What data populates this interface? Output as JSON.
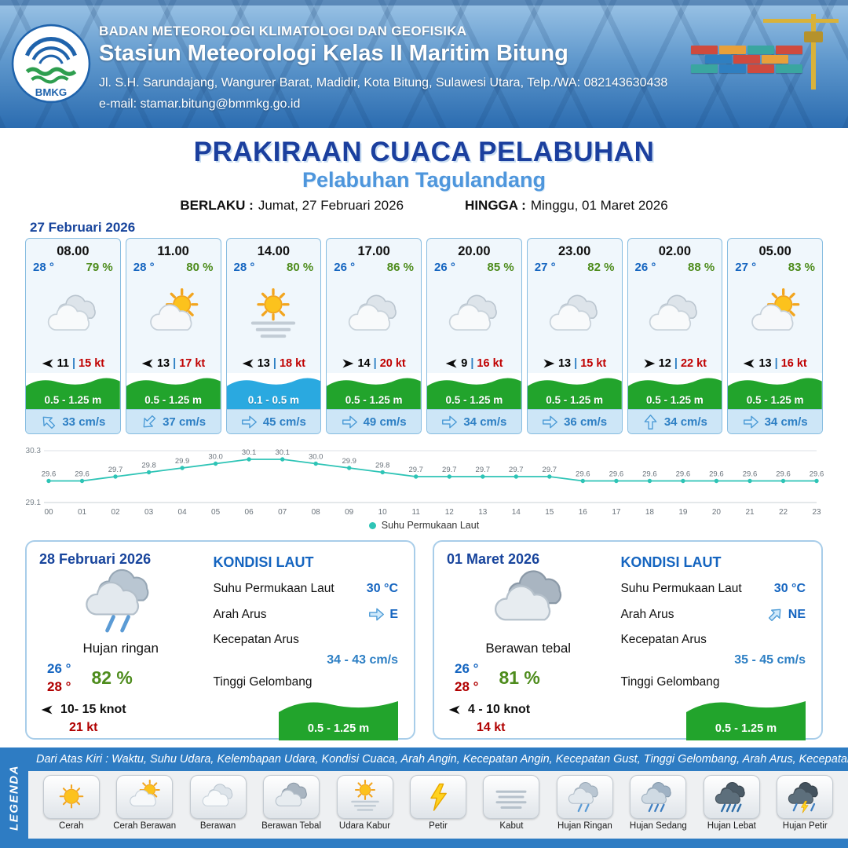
{
  "header": {
    "logo_text": "BMKG",
    "agency": "BADAN METEOROLOGI KLIMATOLOGI DAN GEOFISIKA",
    "station": "Stasiun Meteorologi Kelas II Maritim Bitung",
    "address": "Jl. S.H. Sarundajang, Wangurer Barat, Madidir, Kota Bitung, Sulawesi Utara, Telp./WA: 082143630438",
    "email": "e-mail: stamar.bitung@bmmkg.go.id"
  },
  "title": {
    "main": "PRAKIRAAN CUACA PELABUHAN",
    "port": "Pelabuhan Tagulandang",
    "valid_from_label": "BERLAKU :",
    "valid_from": "Jumat, 27 Februari 2026",
    "valid_to_label": "HINGGA :",
    "valid_to": "Minggu, 01 Maret 2026"
  },
  "forecast": {
    "date": "27 Februari 2026",
    "sep": "|",
    "cards": [
      {
        "time": "08.00",
        "temp": "28 °",
        "humidity": "79 %",
        "icon": "berawan",
        "wind_dir": "W",
        "wind_speed": "11",
        "wind_gust": "15 kt",
        "wave": "0.5 - 1.25 m",
        "wave_color": "green",
        "current_dir": "NW",
        "current_speed": "33 cm/s"
      },
      {
        "time": "11.00",
        "temp": "28 °",
        "humidity": "80 %",
        "icon": "cerah-berawan",
        "wind_dir": "W",
        "wind_speed": "13",
        "wind_gust": "17 kt",
        "wave": "0.5 - 1.25 m",
        "wave_color": "green",
        "current_dir": "SW",
        "current_speed": "37 cm/s"
      },
      {
        "time": "14.00",
        "temp": "28 °",
        "humidity": "80 %",
        "icon": "udara-kabur",
        "wind_dir": "W",
        "wind_speed": "13",
        "wind_gust": "18 kt",
        "wave": "0.1 - 0.5 m",
        "wave_color": "blue",
        "current_dir": "E",
        "current_speed": "45 cm/s"
      },
      {
        "time": "17.00",
        "temp": "26 °",
        "humidity": "86 %",
        "icon": "berawan",
        "wind_dir": "E",
        "wind_speed": "14",
        "wind_gust": "20 kt",
        "wave": "0.5 - 1.25 m",
        "wave_color": "green",
        "current_dir": "E",
        "current_speed": "49 cm/s"
      },
      {
        "time": "20.00",
        "temp": "26 °",
        "humidity": "85 %",
        "icon": "berawan",
        "wind_dir": "W",
        "wind_speed": "9",
        "wind_gust": "16 kt",
        "wave": "0.5 - 1.25 m",
        "wave_color": "green",
        "current_dir": "E",
        "current_speed": "34 cm/s"
      },
      {
        "time": "23.00",
        "temp": "27 °",
        "humidity": "82 %",
        "icon": "berawan",
        "wind_dir": "E",
        "wind_speed": "13",
        "wind_gust": "15 kt",
        "wave": "0.5 - 1.25 m",
        "wave_color": "green",
        "current_dir": "E",
        "current_speed": "36 cm/s"
      },
      {
        "time": "02.00",
        "temp": "26 °",
        "humidity": "88 %",
        "icon": "berawan",
        "wind_dir": "E",
        "wind_speed": "12",
        "wind_gust": "22 kt",
        "wave": "0.5 - 1.25 m",
        "wave_color": "green",
        "current_dir": "N",
        "current_speed": "34 cm/s"
      },
      {
        "time": "05.00",
        "temp": "27 °",
        "humidity": "83 %",
        "icon": "cerah-berawan",
        "wind_dir": "W",
        "wind_speed": "13",
        "wind_gust": "16 kt",
        "wave": "0.5 - 1.25 m",
        "wave_color": "green",
        "current_dir": "E",
        "current_speed": "34 cm/s"
      }
    ]
  },
  "chart_data": {
    "type": "line",
    "title": "",
    "x": [
      "00",
      "01",
      "02",
      "03",
      "04",
      "05",
      "06",
      "07",
      "08",
      "09",
      "10",
      "11",
      "12",
      "13",
      "14",
      "15",
      "16",
      "17",
      "18",
      "19",
      "20",
      "21",
      "22",
      "23"
    ],
    "series": [
      {
        "name": "Suhu Permukaan Laut",
        "values": [
          29.6,
          29.6,
          29.7,
          29.8,
          29.9,
          30.0,
          30.1,
          30.1,
          30.0,
          29.9,
          29.8,
          29.7,
          29.7,
          29.7,
          29.7,
          29.7,
          29.6,
          29.6,
          29.6,
          29.6,
          29.6,
          29.6,
          29.6,
          29.6
        ]
      }
    ],
    "ylim": [
      29.1,
      30.3
    ],
    "line_color": "#2ec4b6",
    "legend_position": "bottom",
    "grid": false
  },
  "summaries": [
    {
      "date": "28 Februari 2026",
      "icon": "hujan-ringan",
      "condition": "Hujan ringan",
      "temp_min": "26 °",
      "temp_max": "28 °",
      "humidity": "82 %",
      "wind_dir": "W",
      "wind_range": "10- 15 knot",
      "gust": "21 kt",
      "sea_title": "KONDISI LAUT",
      "sst_label": "Suhu Permukaan Laut",
      "sst": "30 °C",
      "current_dir_label": "Arah Arus",
      "current_dir": "E",
      "current_speed_label": "Kecepatan Arus",
      "current_speed": "34 - 43 cm/s",
      "wave_label": "Tinggi Gelombang",
      "wave": "0.5 - 1.25 m"
    },
    {
      "date": "01 Maret 2026",
      "icon": "berawan-tebal",
      "condition": "Berawan tebal",
      "temp_min": "26 °",
      "temp_max": "28 °",
      "humidity": "81 %",
      "wind_dir": "W",
      "wind_range": "4  - 10 knot",
      "gust": "14 kt",
      "sea_title": "KONDISI LAUT",
      "sst_label": "Suhu Permukaan Laut",
      "sst": "30 °C",
      "current_dir_label": "Arah Arus",
      "current_dir": "NE",
      "current_speed_label": "Kecepatan Arus",
      "current_speed": "35 - 45 cm/s",
      "wave_label": "Tinggi Gelombang",
      "wave": "0.5 - 1.25 m"
    }
  ],
  "legend": {
    "note": "Dari Atas Kiri : Waktu, Suhu Udara, Kelembapan Udara, Kondisi Cuaca, Arah Angin, Kecepatan Angin, Kecepatan Gust, Tinggi Gelombang, Arah Arus, Kecepatan Arus",
    "title": "LEGENDA",
    "items": [
      {
        "icon": "cerah",
        "label": "Cerah"
      },
      {
        "icon": "cerah-berawan",
        "label": "Cerah Berawan"
      },
      {
        "icon": "berawan",
        "label": "Berawan"
      },
      {
        "icon": "berawan-tebal",
        "label": "Berawan Tebal"
      },
      {
        "icon": "udara-kabur",
        "label": "Udara Kabur"
      },
      {
        "icon": "petir",
        "label": "Petir"
      },
      {
        "icon": "kabut",
        "label": "Kabut"
      },
      {
        "icon": "hujan-ringan",
        "label": "Hujan Ringan"
      },
      {
        "icon": "hujan-sedang",
        "label": "Hujan Sedang"
      },
      {
        "icon": "hujan-lebat",
        "label": "Hujan Lebat"
      },
      {
        "icon": "hujan-petir",
        "label": "Hujan Petir"
      }
    ]
  },
  "colors": {
    "brand_blue": "#2e7cc3",
    "title_blue": "#1b3f9e",
    "port_blue": "#4e96dc",
    "temp_blue": "#1565c0",
    "humidity_green": "#4e8c1d",
    "gust_red": "#c00000",
    "wave_green": "#22a42c",
    "wave_blue": "#2aa9e0",
    "chart_teal": "#2ec4b6"
  }
}
